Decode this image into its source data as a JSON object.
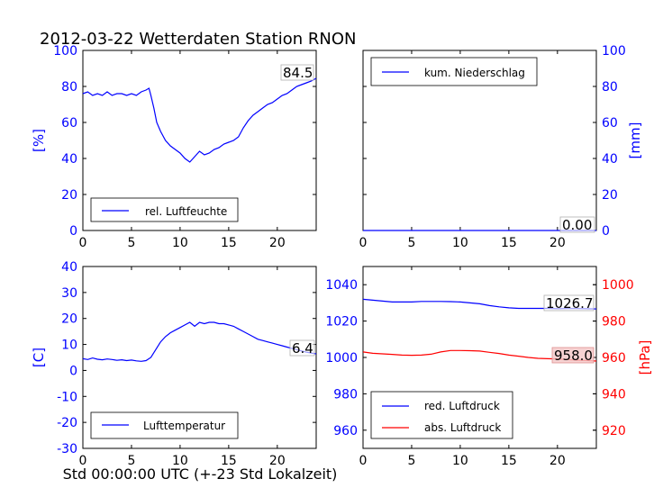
{
  "title": "2012-03-22 Wetterdaten Station RNON",
  "xlabel": "Std 00:00:00 UTC (+-23 Std Lokalzeit)",
  "colors": {
    "blue": "#0000ff",
    "red": "#ff0000",
    "black": "#000000"
  },
  "chart_data": [
    {
      "type": "line",
      "panel": "humidity",
      "ylabel": "[%]",
      "xlim": [
        0,
        24
      ],
      "ylim": [
        0,
        100
      ],
      "xticks": [
        0,
        5,
        10,
        15,
        20
      ],
      "yticks": [
        0,
        20,
        40,
        60,
        80,
        100
      ],
      "ytick_side": "left",
      "grid": false,
      "legend_position": "lower-left",
      "last_value_label": "84.5",
      "series": [
        {
          "name": "rel. Luftfeuchte",
          "color": "#0000ff",
          "x": [
            0,
            0.5,
            1,
            1.5,
            2,
            2.5,
            3,
            3.5,
            4,
            4.5,
            5,
            5.5,
            6,
            6.5,
            6.8,
            7,
            7.3,
            7.6,
            8,
            8.5,
            9,
            9.5,
            10,
            10.5,
            11,
            11.5,
            12,
            12.5,
            13,
            13.5,
            14,
            14.5,
            15,
            15.5,
            16,
            16.5,
            17,
            17.5,
            18,
            18.5,
            19,
            19.5,
            20,
            20.5,
            21,
            21.5,
            22,
            22.5,
            23,
            23.5,
            24
          ],
          "y": [
            76,
            77,
            75,
            76,
            75,
            77,
            75,
            76,
            76,
            75,
            76,
            75,
            77,
            78,
            79,
            75,
            68,
            60,
            55,
            50,
            47,
            45,
            43,
            40,
            38,
            41,
            44,
            42,
            43,
            45,
            46,
            48,
            49,
            50,
            52,
            57,
            61,
            64,
            66,
            68,
            70,
            71,
            73,
            75,
            76,
            78,
            80,
            81,
            82,
            83,
            84.5
          ]
        }
      ]
    },
    {
      "type": "line",
      "panel": "precipitation",
      "ylabel": "[mm]",
      "xlim": [
        0,
        24
      ],
      "ylim": [
        0,
        100
      ],
      "xticks": [
        0,
        5,
        10,
        15,
        20
      ],
      "yticks": [
        0,
        20,
        40,
        60,
        80,
        100
      ],
      "ytick_side": "right",
      "grid": false,
      "legend_position": "upper-left",
      "last_value_label": "0.00",
      "series": [
        {
          "name": "kum. Niederschlag",
          "color": "#0000ff",
          "x": [
            0,
            24
          ],
          "y": [
            0,
            0
          ]
        }
      ]
    },
    {
      "type": "line",
      "panel": "temperature",
      "ylabel": "[C]",
      "xlim": [
        0,
        24
      ],
      "ylim": [
        -30,
        40
      ],
      "xticks": [
        0,
        5,
        10,
        15,
        20
      ],
      "yticks": [
        -30,
        -20,
        -10,
        0,
        10,
        20,
        30,
        40
      ],
      "ytick_side": "left",
      "grid": false,
      "legend_position": "lower-left",
      "last_value_label": "6.4",
      "series": [
        {
          "name": "Lufttemperatur",
          "color": "#0000ff",
          "x": [
            0,
            0.5,
            1,
            1.5,
            2,
            2.5,
            3,
            3.5,
            4,
            4.5,
            5,
            5.5,
            6,
            6.5,
            7,
            7.5,
            8,
            8.5,
            9,
            9.5,
            10,
            10.5,
            11,
            11.5,
            12,
            12.5,
            13,
            13.5,
            14,
            14.5,
            15,
            15.5,
            16,
            16.5,
            17,
            17.5,
            18,
            18.5,
            19,
            19.5,
            20,
            20.5,
            21,
            21.5,
            22,
            22.5,
            23,
            23.5,
            24
          ],
          "y": [
            4.5,
            4.2,
            4.8,
            4.3,
            4.1,
            4.4,
            4.2,
            3.9,
            4.1,
            3.8,
            4.0,
            3.7,
            3.5,
            3.8,
            5,
            8,
            11,
            13,
            14.5,
            15.5,
            16.5,
            17.5,
            18.5,
            17,
            18.5,
            18,
            18.5,
            18.5,
            18,
            18,
            17.5,
            17,
            16,
            15,
            14,
            13,
            12,
            11.5,
            11,
            10.5,
            10,
            9.5,
            9,
            8.5,
            8,
            7.5,
            7,
            6.7,
            6.4
          ]
        }
      ]
    },
    {
      "type": "line",
      "panel": "pressure",
      "ylabel": "[hPa]",
      "xlim": [
        0,
        24
      ],
      "ylim": [
        950,
        1050
      ],
      "ylim_right": [
        910,
        1010
      ],
      "xticks": [
        0,
        5,
        10,
        15,
        20
      ],
      "yticks": [
        960,
        980,
        1000,
        1020,
        1040
      ],
      "yticks_right": [
        920,
        940,
        960,
        980,
        1000
      ],
      "grid": false,
      "legend_position": "lower-left",
      "last_value_labels": [
        "1026.7",
        "958.0"
      ],
      "series": [
        {
          "name": "red. Luftdruck",
          "color": "#0000ff",
          "axis": "left",
          "x": [
            0,
            1,
            2,
            3,
            4,
            5,
            6,
            7,
            8,
            9,
            10,
            11,
            12,
            13,
            14,
            15,
            16,
            17,
            18,
            19,
            20,
            21,
            22,
            23,
            24
          ],
          "y": [
            1032,
            1031.5,
            1031,
            1030.5,
            1030.5,
            1030.5,
            1030.8,
            1030.8,
            1030.8,
            1030.7,
            1030.5,
            1030,
            1029.5,
            1028.5,
            1027.8,
            1027.3,
            1027,
            1027,
            1027,
            1027,
            1026.8,
            1026.9,
            1026.9,
            1026.8,
            1026.7
          ]
        },
        {
          "name": "abs. Luftdruck",
          "color": "#ff0000",
          "axis": "right",
          "x": [
            0,
            1,
            2,
            3,
            4,
            5,
            6,
            7,
            8,
            9,
            10,
            11,
            12,
            13,
            14,
            15,
            16,
            17,
            18,
            19,
            20,
            21,
            22,
            23,
            24
          ],
          "y": [
            963,
            962.3,
            962,
            961.7,
            961.3,
            961.2,
            961.3,
            961.8,
            963,
            963.8,
            963.8,
            963.7,
            963.5,
            962.8,
            962.2,
            961.3,
            960.7,
            960,
            959.5,
            959.3,
            959.2,
            958.8,
            958.5,
            958.3,
            958.0
          ]
        }
      ]
    }
  ]
}
